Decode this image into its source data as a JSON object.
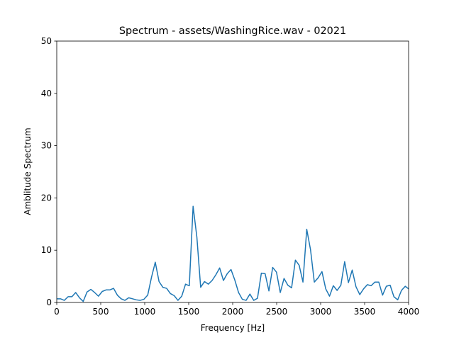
{
  "chart_data": {
    "type": "line",
    "title": "Spectrum - assets/WashingRice.wav - 02021",
    "x_label": "Frequency [Hz]",
    "y_label": "Amblitude Spectrum",
    "xlim": [
      0,
      4000
    ],
    "ylim": [
      0,
      50
    ],
    "xticks": [
      0,
      500,
      1000,
      1500,
      2000,
      2500,
      3000,
      3500,
      4000
    ],
    "yticks": [
      0,
      10,
      20,
      30,
      40,
      50
    ],
    "grid": false,
    "x": [
      0,
      43,
      86,
      129,
      172,
      215,
      258,
      301,
      344,
      388,
      431,
      474,
      517,
      560,
      603,
      646,
      689,
      732,
      775,
      818,
      861,
      904,
      947,
      990,
      1034,
      1077,
      1120,
      1163,
      1206,
      1249,
      1292,
      1335,
      1378,
      1421,
      1464,
      1507,
      1550,
      1593,
      1636,
      1680,
      1723,
      1766,
      1809,
      1852,
      1895,
      1938,
      1981,
      2024,
      2067,
      2110,
      2153,
      2196,
      2239,
      2282,
      2326,
      2369,
      2412,
      2455,
      2498,
      2541,
      2584,
      2627,
      2670,
      2713,
      2756,
      2799,
      2842,
      2885,
      2928,
      2971,
      3015,
      3058,
      3101,
      3144,
      3187,
      3230,
      3273,
      3316,
      3359,
      3402,
      3445,
      3488,
      3531,
      3574,
      3617,
      3661,
      3704,
      3747,
      3790,
      3833,
      3876,
      3919,
      3962,
      4000
    ],
    "series": [
      {
        "color": "#1f77b4",
        "values": [
          0.7,
          0.7,
          0.4,
          1.1,
          1.1,
          1.9,
          0.9,
          0.2,
          2.0,
          2.5,
          1.9,
          1.2,
          2.1,
          2.4,
          2.4,
          2.7,
          1.4,
          0.7,
          0.4,
          0.9,
          0.7,
          0.5,
          0.4,
          0.6,
          1.4,
          4.8,
          7.7,
          4.0,
          2.9,
          2.7,
          1.7,
          1.3,
          0.4,
          1.2,
          3.5,
          3.2,
          18.4,
          12.5,
          2.9,
          4.0,
          3.5,
          4.2,
          5.3,
          6.6,
          4.2,
          5.5,
          6.3,
          4.3,
          1.9,
          0.6,
          0.4,
          1.6,
          0.4,
          0.8,
          5.6,
          5.5,
          2.2,
          6.7,
          5.8,
          1.9,
          4.6,
          3.3,
          2.8,
          8.1,
          7.1,
          3.9,
          14.0,
          10.1,
          3.9,
          4.7,
          5.9,
          2.6,
          1.2,
          3.2,
          2.3,
          3.3,
          7.8,
          3.8,
          6.2,
          3.0,
          1.5,
          2.6,
          3.4,
          3.2,
          3.9,
          3.9,
          1.4,
          3.1,
          3.3,
          1.1,
          0.5,
          2.3,
          3.1,
          2.6
        ]
      }
    ]
  }
}
